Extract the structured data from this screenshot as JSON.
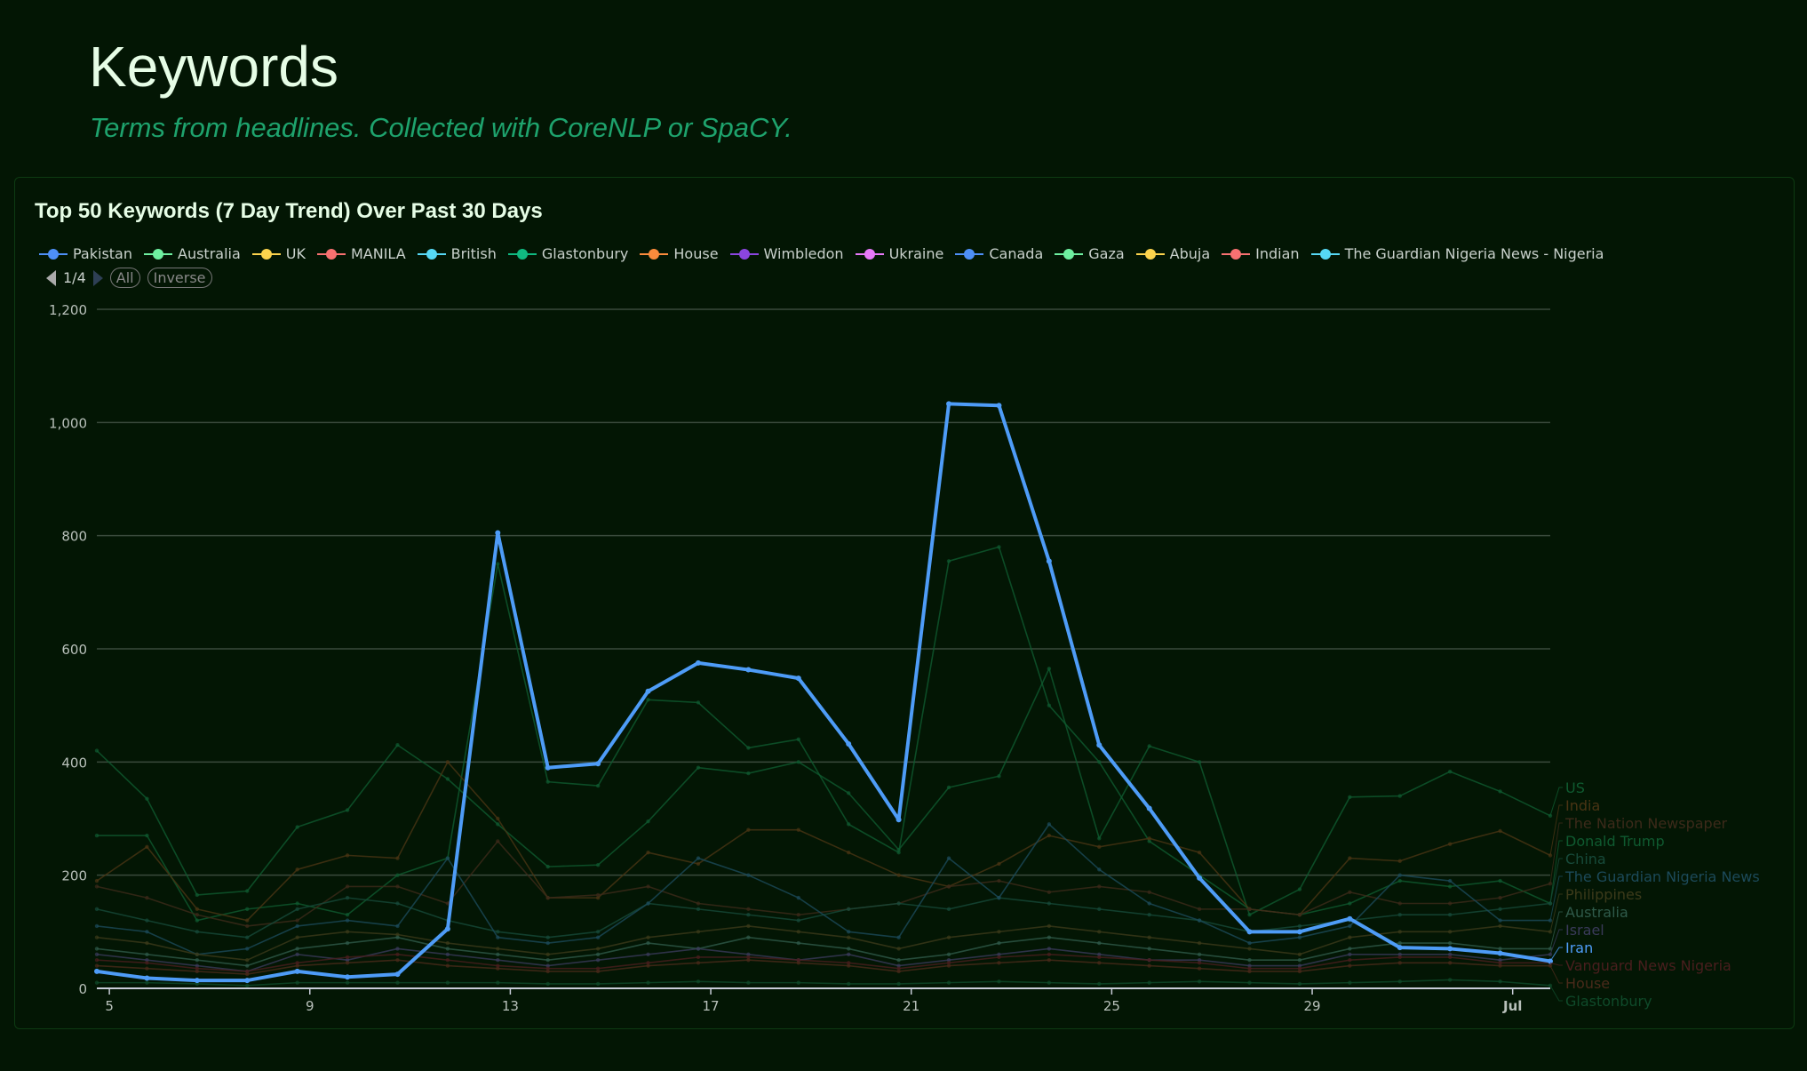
{
  "header": {
    "title": "Keywords",
    "subtitle": "Terms from headlines. Collected with CoreNLP or SpaCY."
  },
  "legend": {
    "items": [
      {
        "label": "Pakistan",
        "color": "#4e8ff7"
      },
      {
        "label": "Australia",
        "color": "#6ef0a0"
      },
      {
        "label": "UK",
        "color": "#fcd34d"
      },
      {
        "label": "MANILA",
        "color": "#f87171"
      },
      {
        "label": "British",
        "color": "#56d8f5"
      },
      {
        "label": "Glastonbury",
        "color": "#10b981"
      },
      {
        "label": "House",
        "color": "#fb8b3c"
      },
      {
        "label": "Wimbledon",
        "color": "#8b45e0"
      },
      {
        "label": "Ukraine",
        "color": "#e879f9"
      },
      {
        "label": "Canada",
        "color": "#4e8ff7"
      },
      {
        "label": "Gaza",
        "color": "#6ef0a0"
      },
      {
        "label": "Abuja",
        "color": "#fcd34d"
      },
      {
        "label": "Indian",
        "color": "#f87171"
      },
      {
        "label": "The Guardian Nigeria News - Nigeria",
        "color": "#56d8f5"
      }
    ],
    "page": "1/4",
    "all_label": "All",
    "inverse_label": "Inverse"
  },
  "chart_data": {
    "type": "line",
    "title": "Top 50 Keywords (7 Day Trend) Over Past 30 Days",
    "ylim": [
      0,
      1200
    ],
    "yticks": [
      "0",
      "200",
      "400",
      "600",
      "800",
      "1,000",
      "1,200"
    ],
    "ytick_values": [
      0,
      200,
      400,
      600,
      800,
      1000,
      1200
    ],
    "xticks": [
      "5",
      "9",
      "13",
      "17",
      "21",
      "25",
      "29",
      "Jul"
    ],
    "xtick_index": [
      0.25,
      4.25,
      8.25,
      12.25,
      16.25,
      20.25,
      24.25,
      28.25
    ],
    "points": 30,
    "highlighted": "Iran",
    "series": [
      {
        "name": "US",
        "color": "#0f5a30",
        "values": [
          420,
          335,
          165,
          172,
          285,
          315,
          430,
          370,
          290,
          215,
          218,
          295,
          390,
          380,
          400,
          345,
          245,
          355,
          375,
          565,
          265,
          428,
          400,
          130,
          175,
          338,
          340,
          383,
          348,
          305
        ]
      },
      {
        "name": "Donald Trump",
        "color": "#0f5a30",
        "values": [
          270,
          270,
          120,
          140,
          150,
          130,
          200,
          230,
          750,
          365,
          358,
          510,
          505,
          425,
          440,
          290,
          240,
          755,
          780,
          500,
          400,
          260,
          200,
          140,
          130,
          150,
          190,
          180,
          190,
          150
        ]
      },
      {
        "name": "India",
        "color": "#4a3414",
        "values": [
          190,
          250,
          140,
          120,
          210,
          235,
          230,
          400,
          300,
          160,
          160,
          240,
          220,
          280,
          280,
          240,
          200,
          180,
          220,
          270,
          250,
          265,
          240,
          140,
          130,
          230,
          225,
          255,
          278,
          235
        ]
      },
      {
        "name": "The Nation Newspaper",
        "color": "#3d2a1a",
        "values": [
          180,
          160,
          130,
          110,
          120,
          180,
          180,
          150,
          260,
          160,
          165,
          180,
          150,
          140,
          130,
          140,
          150,
          180,
          190,
          170,
          180,
          170,
          140,
          140,
          130,
          170,
          150,
          150,
          160,
          185
        ]
      },
      {
        "name": "China",
        "color": "#174a3a",
        "values": [
          140,
          120,
          100,
          90,
          140,
          160,
          150,
          120,
          100,
          90,
          100,
          150,
          140,
          130,
          120,
          140,
          150,
          140,
          160,
          150,
          140,
          130,
          120,
          100,
          110,
          120,
          130,
          130,
          140,
          150
        ]
      },
      {
        "name": "The Guardian Nigeria News",
        "color": "#1c4a5a",
        "values": [
          110,
          100,
          60,
          70,
          110,
          120,
          110,
          230,
          90,
          80,
          90,
          150,
          230,
          200,
          160,
          100,
          90,
          230,
          160,
          290,
          210,
          150,
          120,
          80,
          90,
          110,
          200,
          190,
          120,
          120
        ]
      },
      {
        "name": "Philippines",
        "color": "#3c3a1a",
        "values": [
          90,
          80,
          60,
          50,
          90,
          100,
          95,
          80,
          70,
          60,
          70,
          90,
          100,
          110,
          100,
          90,
          70,
          90,
          100,
          110,
          100,
          90,
          80,
          70,
          60,
          90,
          100,
          100,
          110,
          100
        ]
      },
      {
        "name": "Australia",
        "color": "#2f5a4a",
        "values": [
          70,
          60,
          50,
          40,
          70,
          80,
          90,
          70,
          60,
          50,
          60,
          80,
          70,
          90,
          80,
          70,
          50,
          60,
          80,
          90,
          80,
          70,
          60,
          50,
          50,
          70,
          80,
          80,
          70,
          70
        ]
      },
      {
        "name": "Israel",
        "color": "#3a3a5a",
        "values": [
          60,
          50,
          40,
          30,
          60,
          50,
          70,
          60,
          50,
          40,
          50,
          60,
          70,
          60,
          50,
          60,
          40,
          50,
          60,
          70,
          60,
          50,
          50,
          40,
          40,
          60,
          60,
          60,
          50,
          60
        ]
      },
      {
        "name": "House",
        "color": "#4a2a1a",
        "values": [
          40,
          35,
          30,
          25,
          40,
          45,
          50,
          40,
          35,
          30,
          30,
          40,
          45,
          50,
          45,
          40,
          30,
          40,
          45,
          50,
          45,
          40,
          35,
          30,
          30,
          40,
          45,
          45,
          40,
          40
        ]
      },
      {
        "name": "Vanguard News Nigeria",
        "color": "#4a1e1e",
        "values": [
          50,
          45,
          35,
          30,
          45,
          55,
          60,
          50,
          40,
          35,
          35,
          45,
          55,
          55,
          50,
          45,
          35,
          45,
          55,
          60,
          55,
          50,
          45,
          35,
          35,
          50,
          55,
          55,
          45,
          45
        ]
      },
      {
        "name": "Glastonbury",
        "color": "#0f4a2a",
        "values": [
          10,
          10,
          8,
          5,
          10,
          10,
          10,
          10,
          10,
          8,
          8,
          10,
          12,
          10,
          10,
          8,
          8,
          10,
          12,
          10,
          8,
          10,
          12,
          10,
          8,
          10,
          12,
          15,
          12,
          5
        ]
      },
      {
        "name": "Iran",
        "color": "#4e9cf7",
        "values": [
          30,
          18,
          14,
          14,
          30,
          20,
          25,
          105,
          805,
          390,
          397,
          525,
          575,
          563,
          548,
          432,
          298,
          1033,
          1030,
          755,
          430,
          318,
          195,
          100,
          100,
          123,
          72,
          70,
          62,
          48
        ]
      }
    ]
  }
}
